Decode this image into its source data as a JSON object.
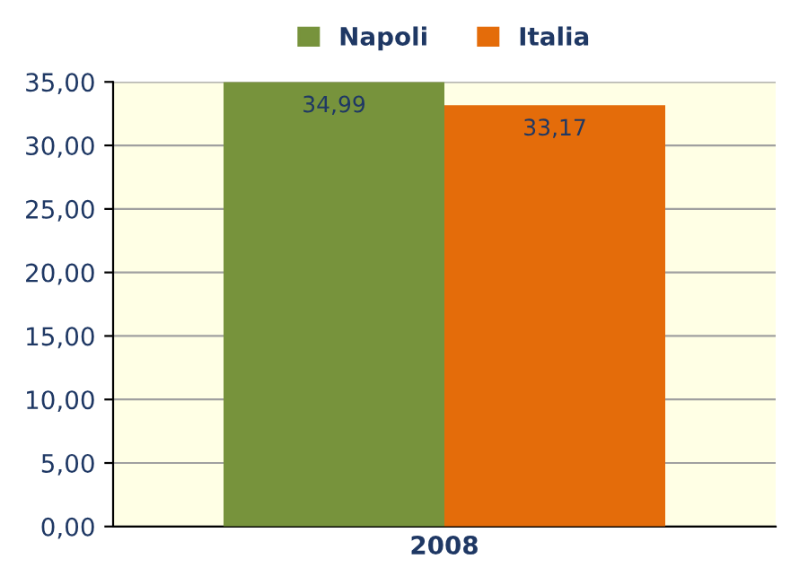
{
  "chart_data": {
    "type": "bar",
    "categories": [
      "2008"
    ],
    "series": [
      {
        "name": "Napoli",
        "color": "#77933c",
        "values": [
          34.99
        ],
        "value_labels": [
          "34,99"
        ]
      },
      {
        "name": "Italia",
        "color": "#e46c0a",
        "values": [
          33.17
        ],
        "value_labels": [
          "33,17"
        ]
      }
    ],
    "ylim": [
      0,
      35
    ],
    "yticks": [
      {
        "value": 0,
        "label": "0,00"
      },
      {
        "value": 5,
        "label": "5,00"
      },
      {
        "value": 10,
        "label": "10,00"
      },
      {
        "value": 15,
        "label": "15,00"
      },
      {
        "value": 20,
        "label": "20,00"
      },
      {
        "value": 25,
        "label": "25,00"
      },
      {
        "value": 30,
        "label": "30,00"
      },
      {
        "value": 35,
        "label": "35,00"
      }
    ],
    "grid": "y",
    "legend": "top"
  }
}
